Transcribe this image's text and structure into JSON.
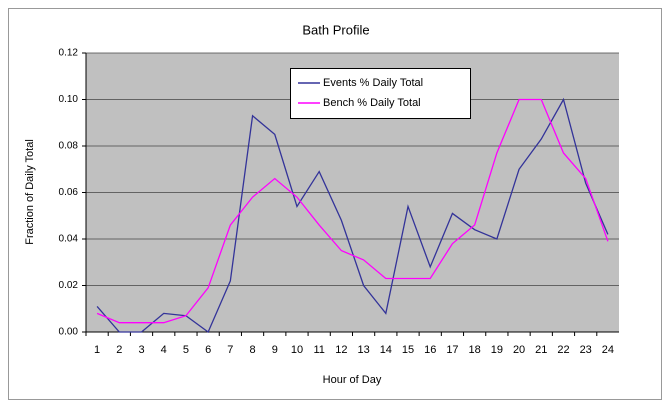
{
  "chart_data": {
    "type": "line",
    "title": "Bath Profile",
    "x_label": "Hour of Day",
    "y_label": "Fraction of Daily Total",
    "categories": [
      1,
      2,
      3,
      4,
      5,
      6,
      7,
      8,
      9,
      10,
      11,
      12,
      13,
      14,
      15,
      16,
      17,
      18,
      19,
      20,
      21,
      22,
      23,
      24
    ],
    "series": [
      {
        "name": "Events % Daily Total",
        "color": "#333399",
        "values": [
          0.011,
          0,
          0,
          0.008,
          0.007,
          0,
          0.022,
          0.093,
          0.085,
          0.054,
          0.069,
          0.048,
          0.02,
          0.008,
          0.054,
          0.028,
          0.051,
          0.044,
          0.04,
          0.07,
          0.083,
          0.1,
          0.064,
          0.042
        ]
      },
      {
        "name": "Bench % Daily Total",
        "color": "#ff00ff",
        "values": [
          0.008,
          0.004,
          0.004,
          0.004,
          0.007,
          0.019,
          0.046,
          0.058,
          0.066,
          0.058,
          0.046,
          0.035,
          0.031,
          0.023,
          0.023,
          0.023,
          0.038,
          0.046,
          0.077,
          0.1,
          0.1,
          0.077,
          0.066,
          0.039
        ]
      }
    ],
    "ylim": [
      0,
      0.12
    ],
    "yticks": [
      {
        "value": 0,
        "label": "0.00"
      },
      {
        "value": 0.02,
        "label": "0.02"
      },
      {
        "value": 0.04,
        "label": "0.04"
      },
      {
        "value": 0.06,
        "label": "0.06"
      },
      {
        "value": 0.08,
        "label": "0.08"
      },
      {
        "value": 0.1,
        "label": "0.10"
      },
      {
        "value": 0.12,
        "label": "0.12"
      }
    ],
    "grid": true
  }
}
